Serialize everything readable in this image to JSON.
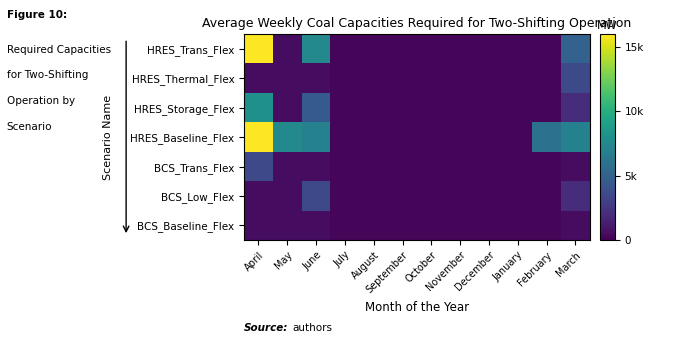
{
  "chart_data": {
    "type": "heatmap",
    "title": "Average Weekly Coal Capacities Required for Two-Shifting Operation",
    "x_label": "Month of the Year",
    "y_label": "Scenario Name",
    "categories": [
      "April",
      "May",
      "June",
      "July",
      "August",
      "September",
      "October",
      "November",
      "December",
      "January",
      "February",
      "March"
    ],
    "rows": [
      "HRES_Trans_Flex",
      "HRES_Thermal_Flex",
      "HRES_Storage_Flex",
      "HRES_Baseline_Flex",
      "BCS_Trans_Flex",
      "BCS_Low_Flex",
      "BCS_Baseline_Flex"
    ],
    "cells": [
      [
        16000,
        500,
        7500,
        200,
        200,
        200,
        200,
        200,
        200,
        200,
        200,
        5000
      ],
      [
        500,
        500,
        500,
        200,
        200,
        200,
        200,
        200,
        200,
        200,
        200,
        3500
      ],
      [
        8000,
        500,
        4500,
        200,
        200,
        200,
        200,
        200,
        200,
        200,
        200,
        2000
      ],
      [
        16000,
        7500,
        7000,
        200,
        200,
        200,
        200,
        200,
        200,
        200,
        6000,
        7000
      ],
      [
        3500,
        500,
        500,
        200,
        200,
        200,
        200,
        200,
        200,
        200,
        200,
        500
      ],
      [
        500,
        500,
        3500,
        200,
        200,
        200,
        200,
        200,
        200,
        200,
        200,
        2000
      ],
      [
        500,
        500,
        500,
        200,
        200,
        200,
        200,
        200,
        200,
        200,
        200,
        500
      ]
    ],
    "colorbar_label": "MW",
    "colorbar_range": [
      0,
      16000
    ],
    "colorbar_ticks": [
      0,
      {
        "value": 5000,
        "label": "5k"
      },
      {
        "value": 10000,
        "label": "10k"
      },
      {
        "value": 15000,
        "label": "15k"
      }
    ],
    "figure_label": "Figure 10:",
    "caption": [
      "Required Capacities",
      "for Two-Shifting",
      "Operation by",
      "Scenario"
    ],
    "source": [
      "Source:",
      "authors"
    ]
  }
}
